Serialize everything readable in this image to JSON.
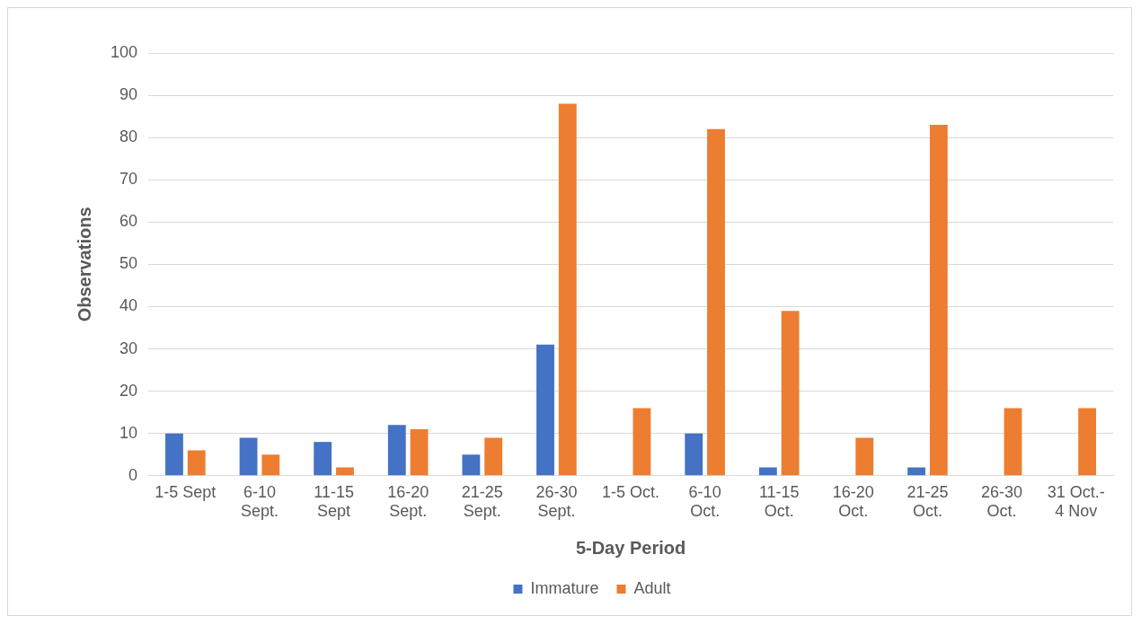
{
  "chart_data": {
    "type": "bar",
    "xlabel": "5-Day Period",
    "ylabel": "Observations",
    "categories": [
      "1-5 Sept",
      "6-10 Sept.",
      "11-15 Sept",
      "16-20 Sept.",
      "21-25 Sept.",
      "26-30 Sept.",
      "1-5 Oct.",
      "6-10 Oct.",
      "11-15 Oct.",
      "16-20 Oct.",
      "21-25 Oct.",
      "26-30 Oct.",
      "31 Oct.- 4 Nov"
    ],
    "series": [
      {
        "name": "Immature",
        "color": "#4472c4",
        "values": [
          10,
          9,
          8,
          12,
          5,
          31,
          0,
          10,
          2,
          0,
          2,
          0,
          0
        ]
      },
      {
        "name": "Adult",
        "color": "#ed7d31",
        "values": [
          6,
          5,
          2,
          11,
          9,
          88,
          16,
          82,
          39,
          9,
          83,
          16,
          16
        ]
      }
    ],
    "ylim": [
      0,
      100
    ],
    "yticks": [
      0,
      10,
      20,
      30,
      40,
      50,
      60,
      70,
      80,
      90,
      100
    ],
    "grid": "y",
    "legend": "bottom"
  }
}
